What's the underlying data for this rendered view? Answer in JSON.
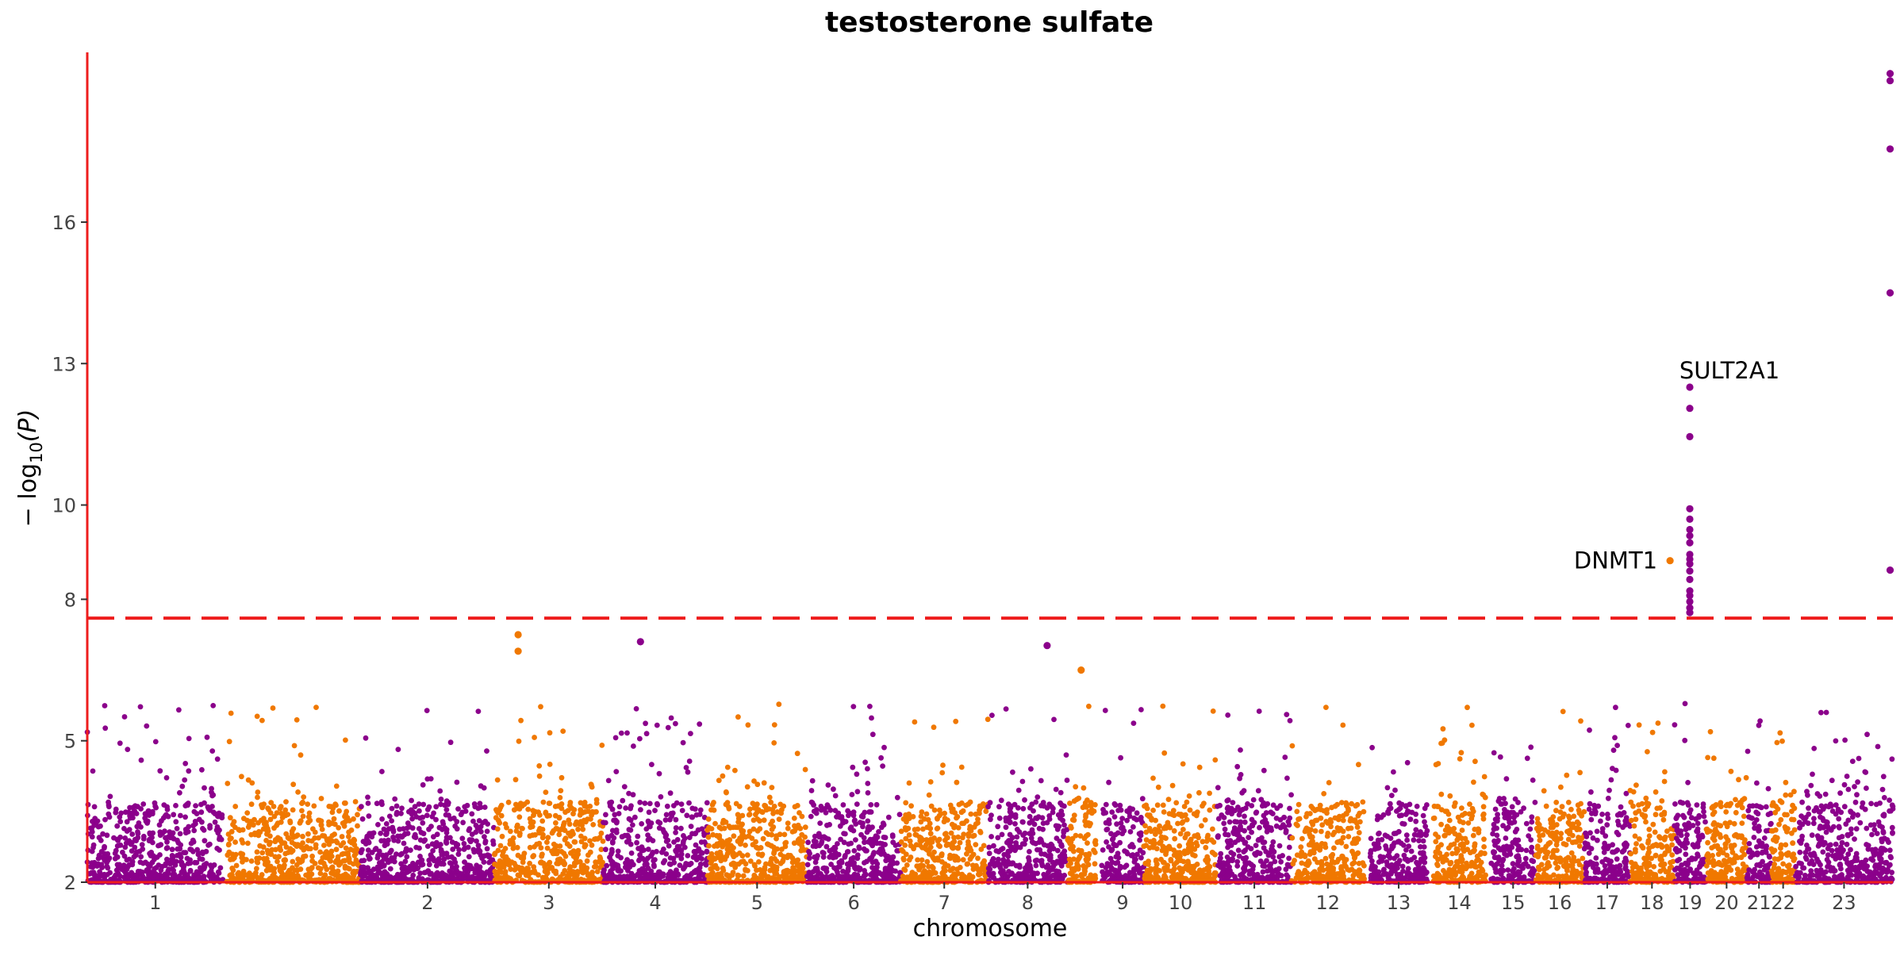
{
  "chart_data": {
    "type": "scatter",
    "title": "testosterone sulfate",
    "xlabel": "chromosome",
    "ylabel_prefix": "− log",
    "ylabel_sub": "10",
    "ylabel_suffix": "(P)",
    "ylim": [
      2,
      19.6
    ],
    "yticks": [
      2,
      5,
      8,
      10,
      13,
      16
    ],
    "threshold": 7.6,
    "threshold_color": "#ee1c1c",
    "axis_color": "#ee1c1c",
    "colors": [
      "#8b008b",
      "#f07800"
    ],
    "chromosomes": [
      {
        "label": "1",
        "start": 0,
        "end": 248
      },
      {
        "label": "",
        "start": 254,
        "end": 498
      },
      {
        "label": "2",
        "start": 498,
        "end": 742
      },
      {
        "label": "3",
        "start": 742,
        "end": 940
      },
      {
        "label": "4",
        "start": 940,
        "end": 1130
      },
      {
        "label": "5",
        "start": 1130,
        "end": 1311
      },
      {
        "label": "6",
        "start": 1311,
        "end": 1482
      },
      {
        "label": "7",
        "start": 1482,
        "end": 1641
      },
      {
        "label": "8",
        "start": 1641,
        "end": 1786
      },
      {
        "label": "",
        "start": 1786,
        "end": 1838
      },
      {
        "label": "9",
        "start": 1848,
        "end": 1925
      },
      {
        "label": "10",
        "start": 1925,
        "end": 2059
      },
      {
        "label": "11",
        "start": 2059,
        "end": 2194
      },
      {
        "label": "12",
        "start": 2194,
        "end": 2327
      },
      {
        "label": "13",
        "start": 2337,
        "end": 2442
      },
      {
        "label": "14",
        "start": 2452,
        "end": 2548
      },
      {
        "label": "15",
        "start": 2558,
        "end": 2638
      },
      {
        "label": "16",
        "start": 2638,
        "end": 2728
      },
      {
        "label": "17",
        "start": 2728,
        "end": 2811
      },
      {
        "label": "18",
        "start": 2811,
        "end": 2891
      },
      {
        "label": "19",
        "start": 2891,
        "end": 2950
      },
      {
        "label": "20",
        "start": 2950,
        "end": 3024
      },
      {
        "label": "21",
        "start": 3024,
        "end": 3068
      },
      {
        "label": "22",
        "start": 3068,
        "end": 3112
      },
      {
        "label": "23",
        "start": 3112,
        "end": 3290
      }
    ],
    "highlight_points": [
      {
        "x": 2920,
        "y": 12.5
      },
      {
        "x": 2920,
        "y": 12.05
      },
      {
        "x": 2920,
        "y": 11.45
      },
      {
        "x": 2920,
        "y": 9.92
      },
      {
        "x": 2920,
        "y": 9.7
      },
      {
        "x": 2920,
        "y": 9.48
      },
      {
        "x": 2920,
        "y": 9.35
      },
      {
        "x": 2920,
        "y": 9.2
      },
      {
        "x": 2920,
        "y": 8.95
      },
      {
        "x": 2920,
        "y": 8.85
      },
      {
        "x": 2920,
        "y": 8.75
      },
      {
        "x": 2920,
        "y": 8.6
      },
      {
        "x": 2920,
        "y": 8.42
      },
      {
        "x": 2920,
        "y": 8.18
      },
      {
        "x": 2920,
        "y": 8.08
      },
      {
        "x": 2920,
        "y": 7.95
      },
      {
        "x": 2920,
        "y": 7.82
      },
      {
        "x": 2920,
        "y": 7.72
      },
      {
        "x": 2884,
        "y": 8.82
      },
      {
        "x": 3285,
        "y": 19.15
      },
      {
        "x": 3285,
        "y": 19.0
      },
      {
        "x": 3285,
        "y": 17.55
      },
      {
        "x": 3285,
        "y": 14.5
      },
      {
        "x": 3285,
        "y": 8.62
      },
      {
        "x": 785,
        "y": 7.25
      },
      {
        "x": 785,
        "y": 6.9
      },
      {
        "x": 1749,
        "y": 7.02
      },
      {
        "x": 1811,
        "y": 6.5
      },
      {
        "x": 1008,
        "y": 7.1
      }
    ],
    "annotations": [
      {
        "text": "SULT2A1",
        "x": 2920,
        "y": 12.5
      },
      {
        "text": "DNMT1",
        "x": 2884,
        "y": 8.82
      }
    ]
  }
}
